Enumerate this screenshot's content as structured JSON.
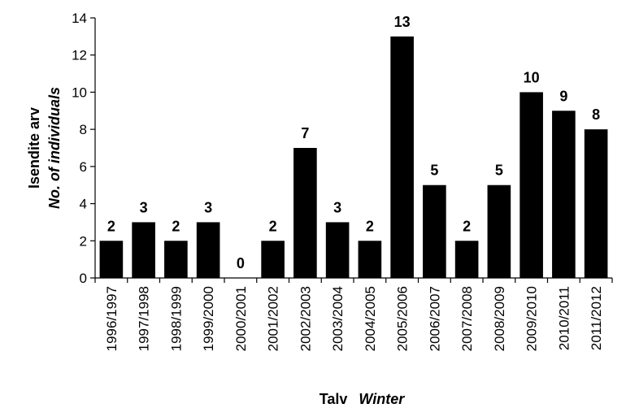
{
  "chart_data": {
    "type": "bar",
    "categories": [
      "1996/1997",
      "1997/1998",
      "1998/1999",
      "1999/2000",
      "2000/2001",
      "2001/2002",
      "2002/2003",
      "2003/2004",
      "2004/2005",
      "2005/2006",
      "2006/2007",
      "2007/2008",
      "2008/2009",
      "2009/2010",
      "2010/2011",
      "2011/2012"
    ],
    "values": [
      2,
      3,
      2,
      3,
      0,
      2,
      7,
      3,
      2,
      13,
      5,
      2,
      5,
      10,
      9,
      8
    ],
    "data_labels": [
      "2",
      "3",
      "2",
      "3",
      "0",
      "2",
      "7",
      "3",
      "2",
      "13",
      "5",
      "2",
      "5",
      "10",
      "9",
      "8"
    ],
    "ylim": [
      0,
      14
    ],
    "yticks": [
      "0",
      "2",
      "4",
      "6",
      "8",
      "10",
      "12",
      "14"
    ],
    "ylabel": "Isendite arv",
    "ylabel_en": "No. of individuals",
    "xlabel": "Talv",
    "xlabel_en": "Winter",
    "grid": false,
    "bar_color": "#000000"
  }
}
